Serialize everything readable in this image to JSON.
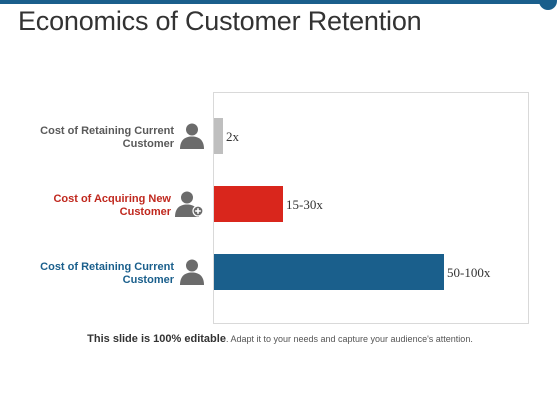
{
  "slide": {
    "title": "Economics of Customer Retention",
    "footer_bold": "This slide is 100% editable",
    "footer_rest": ". Adapt it to your needs and capture your audience's attention."
  },
  "icons": [
    "person-icon",
    "person-add-icon",
    "person-icon"
  ],
  "chart_data": {
    "type": "bar",
    "orientation": "horizontal",
    "categories": [
      "Cost of Retaining Current Customer",
      "Cost of Acquiring New Customer",
      "Cost of Retaining Current Customer"
    ],
    "values": [
      2,
      15,
      50
    ],
    "value_labels": [
      "2x",
      "15-30x",
      "50-100x"
    ],
    "colors": [
      "#bfbfbf",
      "#d9261c",
      "#1a5f8c"
    ],
    "label_colors": [
      "#595959",
      "#c0281e",
      "#1a5f8c"
    ],
    "title": "",
    "xlabel": "",
    "ylabel": "",
    "grid": false
  }
}
